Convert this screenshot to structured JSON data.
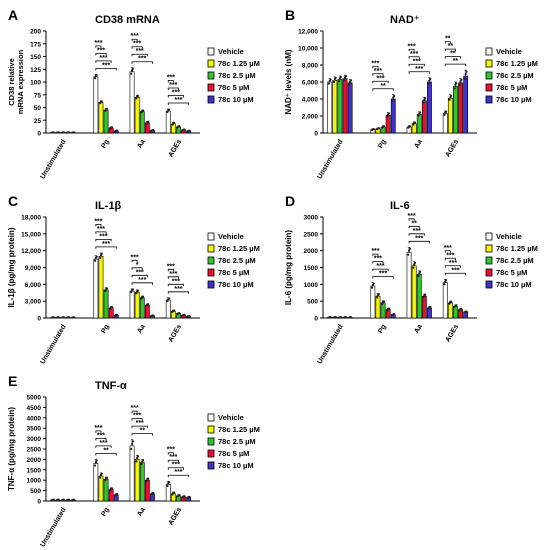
{
  "legend": {
    "entries": [
      "Vehicle",
      "78c 1.25 µM",
      "78c 2.5 µM",
      "78c 5 µM",
      "78c 10 µM"
    ],
    "colors": [
      "#ffffff",
      "#f7f703",
      "#2ec52e",
      "#e8102c",
      "#3f32c8"
    ]
  },
  "chart_data": [
    {
      "type": "bar",
      "letter": "A",
      "title": "CD38 mRNA",
      "ylabel": "CD38 relative mRNA expression",
      "ylim": [
        0,
        200
      ],
      "yticks": [
        0,
        25,
        50,
        75,
        100,
        125,
        150,
        175,
        200
      ],
      "categories": [
        "Unstimulated",
        "Pg",
        "Aa",
        "AGEs"
      ],
      "values": [
        [
          1,
          1,
          1,
          1,
          1
        ],
        [
          110,
          60,
          45,
          10,
          4
        ],
        [
          120,
          70,
          42,
          20,
          5
        ],
        [
          43,
          18,
          12,
          6,
          4
        ]
      ],
      "errors": [
        [
          0.3,
          0.3,
          0.3,
          0.3,
          0.3
        ],
        [
          5,
          3,
          3,
          2,
          1
        ],
        [
          8,
          4,
          3,
          3,
          1
        ],
        [
          4,
          3,
          2,
          1,
          1
        ]
      ],
      "significance": [
        "***",
        "***",
        "***",
        "***",
        "***",
        "***",
        "***",
        "***",
        "***",
        "***",
        "***",
        "***"
      ]
    },
    {
      "type": "bar",
      "letter": "B",
      "title": "NAD⁺",
      "ylabel": "NAD⁺ levels (nM)",
      "ylim": [
        0,
        12000
      ],
      "yticks": [
        "0",
        "2,000",
        "4,000",
        "6,000",
        "8,000",
        "10,000",
        "12,000"
      ],
      "categories": [
        "Unstimulated",
        "Pg",
        "Aa",
        "AGEs"
      ],
      "values": [
        [
          6000,
          6200,
          6300,
          6400,
          5900
        ],
        [
          400,
          500,
          700,
          2100,
          4000
        ],
        [
          700,
          1100,
          2200,
          3800,
          6000
        ],
        [
          2300,
          4100,
          5500,
          5900,
          6700
        ]
      ],
      "errors": [
        [
          400,
          400,
          400,
          400,
          400
        ],
        [
          100,
          100,
          150,
          300,
          500
        ],
        [
          150,
          200,
          300,
          400,
          500
        ],
        [
          300,
          400,
          500,
          500,
          700
        ]
      ],
      "significance": [
        "***",
        "***",
        "***",
        "**",
        "***",
        "***",
        "***",
        "***",
        "**",
        "**",
        "**",
        "**"
      ]
    },
    {
      "type": "bar",
      "letter": "C",
      "title": "IL-1β",
      "ylabel": "IL-1β (pg/mg protein)",
      "ylim": [
        0,
        18000
      ],
      "yticks": [
        "0",
        "3,000",
        "6,000",
        "9,000",
        "12,000",
        "15,000",
        "18,000"
      ],
      "categories": [
        "Unstimulated",
        "Pg",
        "Aa",
        "AGEs"
      ],
      "values": [
        [
          100,
          100,
          100,
          100,
          100
        ],
        [
          10500,
          11000,
          5000,
          1800,
          500
        ],
        [
          4800,
          4600,
          3600,
          2300,
          400
        ],
        [
          3200,
          1200,
          800,
          500,
          300
        ]
      ],
      "errors": [
        [
          50,
          50,
          50,
          50,
          50
        ],
        [
          600,
          600,
          400,
          200,
          100
        ],
        [
          400,
          400,
          300,
          200,
          100
        ],
        [
          400,
          200,
          100,
          100,
          50
        ]
      ],
      "significance": [
        "***",
        "***",
        "***",
        "***",
        "***",
        "*",
        "***",
        "***",
        "***",
        "***",
        "***",
        "***"
      ]
    },
    {
      "type": "bar",
      "letter": "D",
      "title": "IL-6",
      "ylabel": "IL-6 (pg/mg protein)",
      "ylim": [
        0,
        3000
      ],
      "yticks": [
        0,
        500,
        1000,
        1500,
        2000,
        2500,
        3000
      ],
      "categories": [
        "Unstimulated",
        "Pg",
        "Aa",
        "AGEs"
      ],
      "values": [
        [
          20,
          20,
          20,
          20,
          20
        ],
        [
          950,
          650,
          450,
          250,
          100
        ],
        [
          1950,
          1550,
          1300,
          650,
          300
        ],
        [
          1050,
          450,
          350,
          250,
          180
        ]
      ],
      "errors": [
        [
          10,
          10,
          10,
          10,
          10
        ],
        [
          100,
          80,
          60,
          40,
          20
        ],
        [
          150,
          120,
          100,
          60,
          40
        ],
        [
          100,
          50,
          40,
          30,
          20
        ]
      ],
      "significance": [
        "***",
        "***",
        "***",
        "***",
        "***",
        "**",
        "***",
        "***",
        "***",
        "***",
        "***",
        "***"
      ]
    },
    {
      "type": "bar",
      "letter": "E",
      "title": "TNF-α",
      "ylabel": "TNF-α (pg/mg protein)",
      "ylim": [
        0,
        5000
      ],
      "yticks": [
        0,
        500,
        1000,
        1500,
        2000,
        2500,
        3000,
        3500,
        4000,
        4500,
        5000
      ],
      "categories": [
        "Unstimulated",
        "Pg",
        "Aa",
        "AGEs"
      ],
      "values": [
        [
          50,
          50,
          50,
          50,
          50
        ],
        [
          1800,
          1200,
          1050,
          550,
          300
        ],
        [
          2650,
          2000,
          1850,
          1000,
          350
        ],
        [
          800,
          350,
          250,
          200,
          180
        ]
      ],
      "errors": [
        [
          20,
          20,
          20,
          20,
          20
        ],
        [
          200,
          150,
          100,
          80,
          50
        ],
        [
          300,
          200,
          150,
          100,
          50
        ],
        [
          150,
          80,
          50,
          40,
          30
        ]
      ],
      "significance": [
        "***",
        "***",
        "***",
        "**",
        "***",
        "***",
        "***",
        "**",
        "***",
        "***",
        "***",
        "***"
      ]
    }
  ]
}
